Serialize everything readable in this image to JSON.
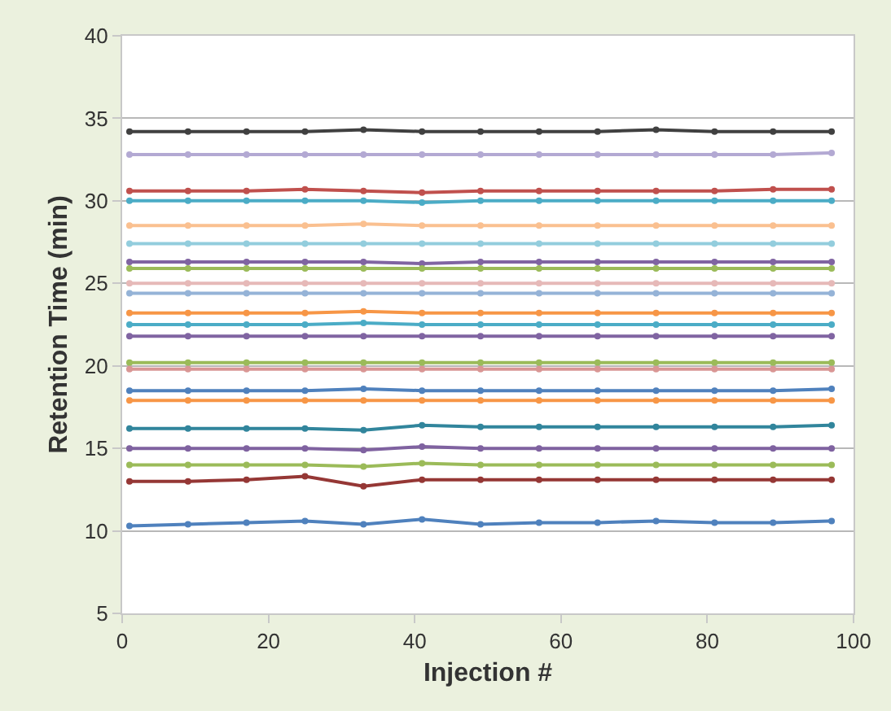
{
  "chart_data": {
    "type": "line",
    "xlabel": "Injection #",
    "ylabel": "Retention Time (min)",
    "x": [
      1,
      9,
      17,
      25,
      33,
      41,
      49,
      57,
      65,
      73,
      81,
      89,
      97
    ],
    "xlim": [
      0,
      100
    ],
    "xticks": [
      0,
      20,
      40,
      60,
      80,
      100
    ],
    "ylim": [
      5,
      40
    ],
    "yticks": [
      5,
      10,
      15,
      20,
      25,
      30,
      35,
      40
    ],
    "grid": "y",
    "legend": false,
    "marker": "circle",
    "line_style": "solid",
    "series": [
      {
        "color": "#404040",
        "values": [
          34.2,
          34.2,
          34.2,
          34.2,
          34.3,
          34.2,
          34.2,
          34.2,
          34.2,
          34.3,
          34.2,
          34.2,
          34.2
        ]
      },
      {
        "color": "#b3a9d3",
        "values": [
          32.8,
          32.8,
          32.8,
          32.8,
          32.8,
          32.8,
          32.8,
          32.8,
          32.8,
          32.8,
          32.8,
          32.8,
          32.9
        ]
      },
      {
        "color": "#c0504d",
        "values": [
          30.6,
          30.6,
          30.6,
          30.7,
          30.6,
          30.5,
          30.6,
          30.6,
          30.6,
          30.6,
          30.6,
          30.7,
          30.7
        ]
      },
      {
        "color": "#4bacc6",
        "values": [
          30.0,
          30.0,
          30.0,
          30.0,
          30.0,
          29.9,
          30.0,
          30.0,
          30.0,
          30.0,
          30.0,
          30.0,
          30.0
        ]
      },
      {
        "color": "#fac090",
        "values": [
          28.5,
          28.5,
          28.5,
          28.5,
          28.6,
          28.5,
          28.5,
          28.5,
          28.5,
          28.5,
          28.5,
          28.5,
          28.5
        ]
      },
      {
        "color": "#93cddd",
        "values": [
          27.4,
          27.4,
          27.4,
          27.4,
          27.4,
          27.4,
          27.4,
          27.4,
          27.4,
          27.4,
          27.4,
          27.4,
          27.4
        ]
      },
      {
        "color": "#8064a2",
        "values": [
          26.3,
          26.3,
          26.3,
          26.3,
          26.3,
          26.2,
          26.3,
          26.3,
          26.3,
          26.3,
          26.3,
          26.3,
          26.3
        ]
      },
      {
        "color": "#9bbb59",
        "values": [
          25.9,
          25.9,
          25.9,
          25.9,
          25.9,
          25.9,
          25.9,
          25.9,
          25.9,
          25.9,
          25.9,
          25.9,
          25.9
        ]
      },
      {
        "color": "#e6b9b8",
        "values": [
          25.0,
          25.0,
          25.0,
          25.0,
          25.0,
          25.0,
          25.0,
          25.0,
          25.0,
          25.0,
          25.0,
          25.0,
          25.0
        ]
      },
      {
        "color": "#95b3d7",
        "values": [
          24.4,
          24.4,
          24.4,
          24.4,
          24.4,
          24.4,
          24.4,
          24.4,
          24.4,
          24.4,
          24.4,
          24.4,
          24.4
        ]
      },
      {
        "color": "#f79646",
        "values": [
          23.2,
          23.2,
          23.2,
          23.2,
          23.3,
          23.2,
          23.2,
          23.2,
          23.2,
          23.2,
          23.2,
          23.2,
          23.2
        ]
      },
      {
        "color": "#4bacc6",
        "values": [
          22.5,
          22.5,
          22.5,
          22.5,
          22.6,
          22.5,
          22.5,
          22.5,
          22.5,
          22.5,
          22.5,
          22.5,
          22.5
        ]
      },
      {
        "color": "#8064a2",
        "values": [
          21.8,
          21.8,
          21.8,
          21.8,
          21.8,
          21.8,
          21.8,
          21.8,
          21.8,
          21.8,
          21.8,
          21.8,
          21.8
        ]
      },
      {
        "color": "#9bbb59",
        "values": [
          20.2,
          20.2,
          20.2,
          20.2,
          20.2,
          20.2,
          20.2,
          20.2,
          20.2,
          20.2,
          20.2,
          20.2,
          20.2
        ]
      },
      {
        "color": "#d99694",
        "values": [
          19.8,
          19.8,
          19.8,
          19.8,
          19.8,
          19.8,
          19.8,
          19.8,
          19.8,
          19.8,
          19.8,
          19.8,
          19.8
        ]
      },
      {
        "color": "#4f81bd",
        "values": [
          18.5,
          18.5,
          18.5,
          18.5,
          18.6,
          18.5,
          18.5,
          18.5,
          18.5,
          18.5,
          18.5,
          18.5,
          18.6
        ]
      },
      {
        "color": "#f79646",
        "values": [
          17.9,
          17.9,
          17.9,
          17.9,
          17.9,
          17.9,
          17.9,
          17.9,
          17.9,
          17.9,
          17.9,
          17.9,
          17.9
        ]
      },
      {
        "color": "#31859c",
        "values": [
          16.2,
          16.2,
          16.2,
          16.2,
          16.1,
          16.4,
          16.3,
          16.3,
          16.3,
          16.3,
          16.3,
          16.3,
          16.4
        ]
      },
      {
        "color": "#7f62a0",
        "values": [
          15.0,
          15.0,
          15.0,
          15.0,
          14.9,
          15.1,
          15.0,
          15.0,
          15.0,
          15.0,
          15.0,
          15.0,
          15.0
        ]
      },
      {
        "color": "#9bbb59",
        "values": [
          14.0,
          14.0,
          14.0,
          14.0,
          13.9,
          14.1,
          14.0,
          14.0,
          14.0,
          14.0,
          14.0,
          14.0,
          14.0
        ]
      },
      {
        "color": "#953735",
        "values": [
          13.0,
          13.0,
          13.1,
          13.3,
          12.7,
          13.1,
          13.1,
          13.1,
          13.1,
          13.1,
          13.1,
          13.1,
          13.1
        ]
      },
      {
        "color": "#4f81bd",
        "values": [
          10.3,
          10.4,
          10.5,
          10.6,
          10.4,
          10.7,
          10.4,
          10.5,
          10.5,
          10.6,
          10.5,
          10.5,
          10.6
        ]
      }
    ]
  }
}
